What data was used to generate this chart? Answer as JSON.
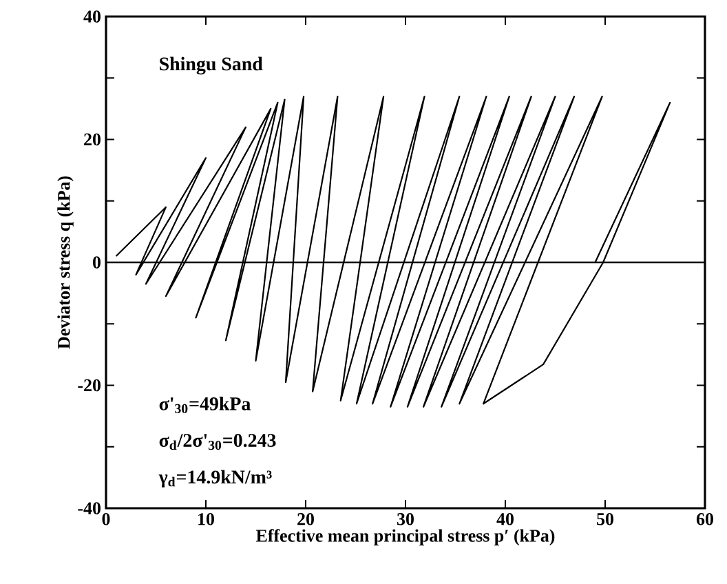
{
  "chart_data": {
    "type": "line",
    "xlabel": "Effective mean principal stress p′ (kPa)",
    "ylabel": "Deviator stress q (kPa)",
    "annotations": [
      "Shingu Sand",
      "σ'$_{30}$=49kPa",
      "σ$_{d}$/2σ'$_{30}$=0.243",
      "γ$_{d}$=14.9kN/m³"
    ],
    "xlim": [
      0,
      60
    ],
    "ylim": [
      -40,
      40
    ],
    "xticks": [
      0,
      10,
      20,
      30,
      40,
      50,
      60
    ],
    "yticks": [
      -40,
      {
        "value": -30,
        "label": null
      },
      -20,
      {
        "value": -10,
        "label": null
      },
      0,
      {
        "value": 10,
        "label": null
      },
      20,
      {
        "value": 30,
        "label": null
      },
      40
    ],
    "ref_lines": [
      {
        "axis": "y",
        "value": 0,
        "color": "#000000"
      }
    ],
    "marker": "none",
    "line_style": "solid",
    "series": [
      {
        "color": "#000000",
        "x": [
          49,
          56.5,
          49.8,
          43.8,
          37.8,
          49.7,
          35.4,
          46.9,
          33.6,
          45,
          31.8,
          42.6,
          30.2,
          40.4,
          28.5,
          38.1,
          26.7,
          35.4,
          25.1,
          31.9,
          23.5,
          27.8,
          20.7,
          23.2,
          18,
          19.8,
          15,
          17.9,
          12,
          17.2,
          9,
          16.5,
          6,
          14,
          4,
          10,
          3,
          6,
          1
        ],
        "values": [
          0,
          26,
          0,
          -16.6,
          -23,
          27,
          -23,
          27,
          -23.5,
          27,
          -23.5,
          27,
          -23.5,
          27,
          -23.5,
          27,
          -23,
          27,
          -23,
          27,
          -22.5,
          27,
          -21,
          27,
          -19.5,
          27,
          -16,
          26.5,
          -12.7,
          26,
          -9,
          25,
          -5.5,
          22,
          -3.5,
          17,
          -2,
          9,
          1
        ]
      }
    ]
  }
}
